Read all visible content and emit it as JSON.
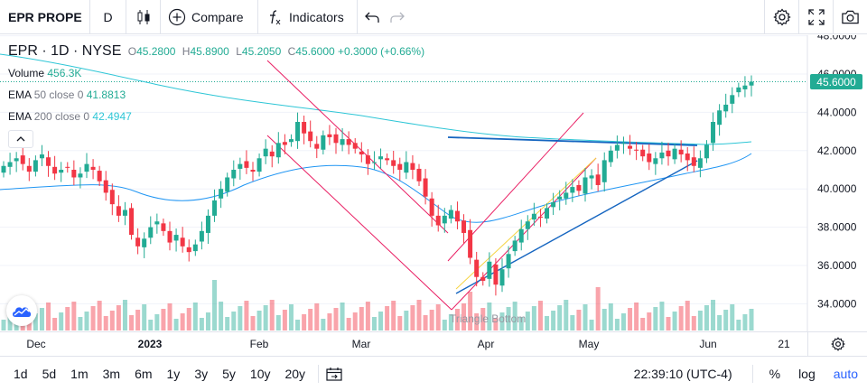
{
  "toolbar": {
    "symbol": "EPR PROPE",
    "interval": "D",
    "chart_type_icon": "candles-icon",
    "compare_label": "Compare",
    "indicators_label": "Indicators",
    "icons_right": [
      "gear-icon",
      "fullscreen-icon",
      "camera-icon"
    ]
  },
  "legend": {
    "symbol": "EPR",
    "interval": "1D",
    "exchange": "NYSE",
    "open_label": "O",
    "open": "45.2800",
    "high_label": "H",
    "high": "45.8900",
    "low_label": "L",
    "low": "45.2050",
    "close_label": "C",
    "close": "45.6000",
    "change": "+0.3000 (+0.66%)",
    "volume_label": "Volume",
    "volume": "456.3K",
    "ema50_name": "EMA",
    "ema50_param": "50 close 0",
    "ema50_value": "41.8813",
    "ema200_name": "EMA",
    "ema200_param": "200 close 0",
    "ema200_value": "42.4947"
  },
  "price_axis": {
    "ticks": [
      "48.0000",
      "46.0000",
      "44.0000",
      "42.0000",
      "40.0000",
      "38.0000",
      "36.0000",
      "34.0000"
    ],
    "last_price": "45.6000",
    "up_color": "#22ab94",
    "down_color": "#f23645"
  },
  "drawing": {
    "pattern_label": "Triangle Bottom"
  },
  "time_axis": {
    "ticks": [
      {
        "label": "Dec",
        "bold": false
      },
      {
        "label": "2023",
        "bold": true
      },
      {
        "label": "Feb",
        "bold": false
      },
      {
        "label": "Mar",
        "bold": false
      },
      {
        "label": "Apr",
        "bold": false
      },
      {
        "label": "May",
        "bold": false
      },
      {
        "label": "Jun",
        "bold": false
      },
      {
        "label": "21",
        "bold": false
      }
    ]
  },
  "bottom": {
    "ranges": [
      "1d",
      "5d",
      "1m",
      "3m",
      "6m",
      "1y",
      "3y",
      "5y",
      "10y",
      "20y"
    ],
    "clock": "22:39:10 (UTC-4)",
    "percent_label": "%",
    "log_label": "log",
    "auto_label": "auto"
  }
}
